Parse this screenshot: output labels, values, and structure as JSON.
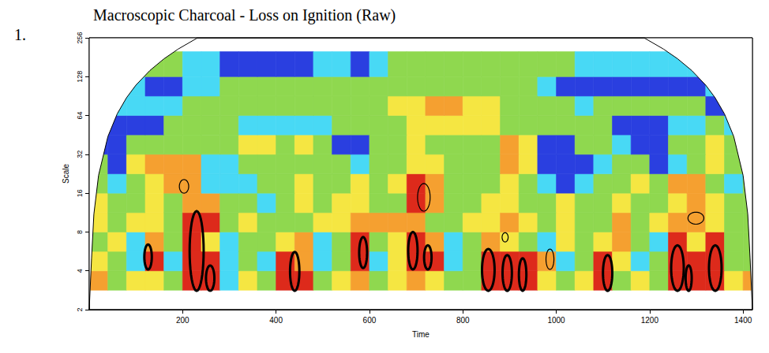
{
  "chart_data": {
    "type": "heatmap",
    "title": "Macroscopic Charcoal - Loss on Ignition (Raw)",
    "panel_label": "1.",
    "x_label": "Time",
    "y_label": "Scale",
    "xlim": [
      0,
      1420
    ],
    "xticks": [
      200,
      400,
      600,
      800,
      1000,
      1200,
      1400
    ],
    "ylim": [
      2,
      256
    ],
    "yticks": [
      2,
      4,
      8,
      16,
      32,
      64,
      128,
      256
    ],
    "log": "y",
    "grid": false,
    "time_edges": [
      0,
      40,
      80,
      120,
      160,
      200,
      240,
      280,
      320,
      360,
      400,
      440,
      480,
      520,
      560,
      600,
      640,
      680,
      720,
      760,
      800,
      840,
      880,
      920,
      960,
      1000,
      1040,
      1080,
      1120,
      1160,
      1200,
      1240,
      1280,
      1320,
      1360,
      1400,
      1420
    ],
    "scale_edges": [
      2.83,
      4,
      5.66,
      8,
      11.3,
      16,
      22.6,
      32,
      45.3,
      64,
      90.5,
      128,
      200
    ],
    "power": [
      [
        4,
        2,
        3,
        3,
        2,
        5,
        5,
        1,
        3,
        2,
        5,
        5,
        2,
        3,
        4,
        2,
        3,
        4,
        3,
        2,
        2,
        5,
        5,
        5,
        3,
        2,
        3,
        5,
        2,
        3,
        2,
        5,
        5,
        5,
        3,
        4
      ],
      [
        3,
        2,
        1,
        5,
        1,
        5,
        5,
        1,
        2,
        1,
        5,
        4,
        1,
        2,
        5,
        1,
        3,
        5,
        5,
        1,
        2,
        5,
        5,
        5,
        4,
        1,
        2,
        5,
        3,
        1,
        2,
        5,
        5,
        5,
        2,
        2
      ],
      [
        2,
        3,
        1,
        4,
        2,
        5,
        3,
        1,
        2,
        2,
        3,
        4,
        1,
        2,
        5,
        2,
        3,
        5,
        4,
        1,
        2,
        4,
        3,
        2,
        1,
        3,
        2,
        3,
        4,
        2,
        1,
        5,
        3,
        5,
        2,
        2
      ],
      [
        3,
        2,
        3,
        3,
        2,
        5,
        5,
        2,
        3,
        2,
        2,
        2,
        3,
        3,
        4,
        4,
        4,
        4,
        2,
        2,
        3,
        3,
        4,
        3,
        2,
        3,
        2,
        2,
        4,
        2,
        3,
        4,
        4,
        3,
        2,
        2
      ],
      [
        3,
        2,
        2,
        3,
        2,
        4,
        4,
        2,
        2,
        1,
        2,
        3,
        2,
        3,
        3,
        2,
        2,
        5,
        4,
        2,
        2,
        3,
        3,
        2,
        2,
        3,
        2,
        2,
        3,
        2,
        2,
        3,
        4,
        3,
        2,
        2
      ],
      [
        2,
        1,
        2,
        3,
        4,
        4,
        1,
        1,
        1,
        2,
        2,
        3,
        2,
        2,
        3,
        2,
        3,
        5,
        4,
        2,
        2,
        2,
        3,
        2,
        1,
        0,
        1,
        2,
        2,
        3,
        2,
        4,
        4,
        2,
        1,
        2
      ],
      [
        2,
        0,
        3,
        4,
        4,
        4,
        1,
        1,
        2,
        2,
        2,
        2,
        2,
        2,
        1,
        2,
        2,
        3,
        3,
        2,
        2,
        2,
        4,
        3,
        0,
        0,
        0,
        1,
        2,
        2,
        0,
        1,
        2,
        3,
        2,
        2
      ],
      [
        0,
        0,
        2,
        2,
        2,
        2,
        2,
        2,
        3,
        3,
        2,
        3,
        2,
        0,
        0,
        2,
        2,
        3,
        2,
        2,
        2,
        2,
        4,
        3,
        0,
        0,
        2,
        2,
        1,
        0,
        0,
        2,
        2,
        3,
        2,
        2
      ],
      [
        2,
        0,
        0,
        0,
        2,
        2,
        2,
        2,
        1,
        1,
        1,
        1,
        1,
        2,
        2,
        2,
        2,
        3,
        3,
        3,
        3,
        3,
        2,
        2,
        2,
        2,
        2,
        2,
        0,
        0,
        0,
        1,
        1,
        2,
        1,
        2
      ],
      [
        2,
        1,
        1,
        1,
        1,
        2,
        2,
        2,
        2,
        2,
        2,
        2,
        2,
        2,
        2,
        2,
        3,
        3,
        4,
        4,
        3,
        3,
        2,
        2,
        2,
        2,
        1,
        2,
        2,
        2,
        2,
        2,
        2,
        0,
        0,
        2
      ],
      [
        2,
        2,
        1,
        0,
        0,
        1,
        1,
        2,
        2,
        2,
        2,
        2,
        2,
        2,
        2,
        2,
        2,
        2,
        2,
        2,
        2,
        2,
        2,
        2,
        1,
        0,
        0,
        0,
        0,
        0,
        0,
        0,
        0,
        1,
        2,
        2
      ],
      [
        2,
        2,
        2,
        2,
        2,
        1,
        1,
        0,
        0,
        0,
        0,
        0,
        1,
        1,
        0,
        1,
        2,
        2,
        2,
        2,
        2,
        2,
        2,
        2,
        2,
        2,
        1,
        1,
        1,
        1,
        1,
        1,
        1,
        1,
        2,
        2
      ]
    ],
    "zlim": [
      0,
      5
    ],
    "colors": [
      "#2a3fe0",
      "#48d9f5",
      "#8fd84f",
      "#f5e642",
      "#f5a030",
      "#dd2a1b"
    ],
    "coi": [
      [
        0,
        2
      ],
      [
        5,
        5
      ],
      [
        10,
        11
      ],
      [
        20,
        22
      ],
      [
        40,
        44
      ],
      [
        60,
        66
      ],
      [
        80,
        88
      ],
      [
        100,
        110
      ],
      [
        130,
        143
      ],
      [
        160,
        176
      ],
      [
        190,
        209
      ],
      [
        232,
        256
      ],
      [
        1188,
        256
      ],
      [
        1230,
        209
      ],
      [
        1260,
        176
      ],
      [
        1290,
        143
      ],
      [
        1320,
        110
      ],
      [
        1340,
        88
      ],
      [
        1360,
        66
      ],
      [
        1380,
        44
      ],
      [
        1400,
        22
      ],
      [
        1410,
        11
      ],
      [
        1415,
        5
      ],
      [
        1420,
        2
      ]
    ],
    "contours": [
      {
        "time": [
          118,
          134
        ],
        "scale": [
          4.1,
          6.4
        ],
        "line_style": "thick"
      },
      {
        "time": [
          215,
          245
        ],
        "scale": [
          2.8,
          11.6
        ],
        "line_style": "thick"
      },
      {
        "time": [
          250,
          268
        ],
        "scale": [
          2.8,
          4.4
        ],
        "line_style": "thick"
      },
      {
        "time": [
          430,
          450
        ],
        "scale": [
          2.8,
          5.6
        ],
        "line_style": "thick"
      },
      {
        "time": [
          578,
          595
        ],
        "scale": [
          4.2,
          7.3
        ],
        "line_style": "thick"
      },
      {
        "time": [
          683,
          703
        ],
        "scale": [
          4.1,
          8
        ],
        "line_style": "thick"
      },
      {
        "time": [
          717,
          733
        ],
        "scale": [
          4.1,
          6.3
        ],
        "line_style": "thick"
      },
      {
        "time": [
          841,
          868
        ],
        "scale": [
          2.8,
          5.9
        ],
        "line_style": "thick"
      },
      {
        "time": [
          885,
          905
        ],
        "scale": [
          2.8,
          5.3
        ],
        "line_style": "thick"
      },
      {
        "time": [
          920,
          936
        ],
        "scale": [
          2.8,
          5
        ],
        "line_style": "thick"
      },
      {
        "time": [
          1100,
          1120
        ],
        "scale": [
          2.8,
          5.3
        ],
        "line_style": "thick"
      },
      {
        "time": [
          1246,
          1273
        ],
        "scale": [
          2.8,
          6.3
        ],
        "line_style": "thick"
      },
      {
        "time": [
          1277,
          1290
        ],
        "scale": [
          2.8,
          4.4
        ],
        "line_style": "thick"
      },
      {
        "time": [
          1327,
          1354
        ],
        "scale": [
          2.8,
          6.3
        ],
        "line_style": "thick"
      },
      {
        "time": [
          193,
          213
        ],
        "scale": [
          16,
          20.4
        ],
        "line_style": "thin"
      },
      {
        "time": [
          703,
          730
        ],
        "scale": [
          11.6,
          19
        ],
        "line_style": "thin"
      },
      {
        "time": [
          884,
          897
        ],
        "scale": [
          6.7,
          7.9
        ],
        "line_style": "thin"
      },
      {
        "time": [
          978,
          995
        ],
        "scale": [
          4.1,
          5.9
        ],
        "line_style": "thin"
      },
      {
        "time": [
          1282,
          1316
        ],
        "scale": [
          9.2,
          11.4
        ],
        "line_style": "thin"
      }
    ]
  }
}
